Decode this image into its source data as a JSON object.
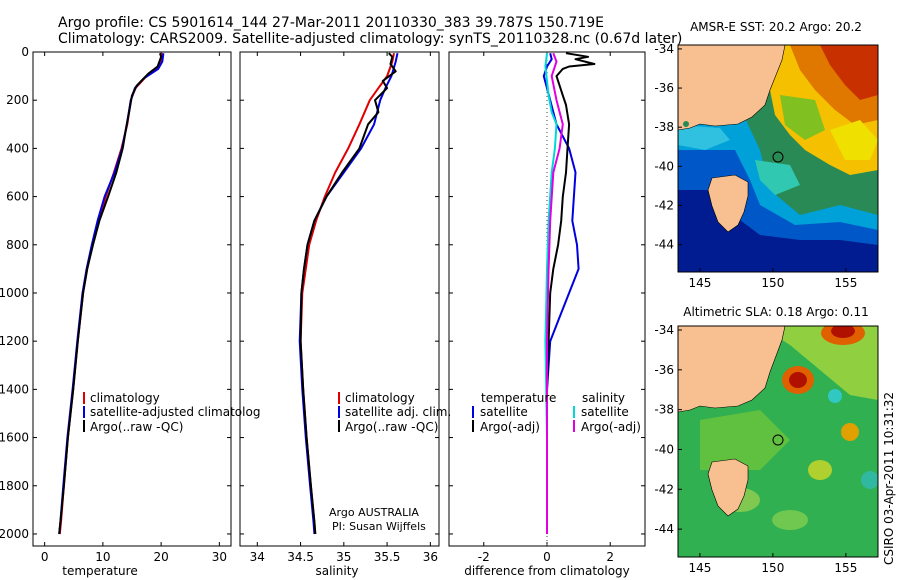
{
  "header": {
    "line1": "Argo profile: CS 5901614_144 27-Mar-2011 20110330_383 39.787S 150.719E",
    "line2": "Climatology: CARS2009. Satellite-adjusted climatology: synTS_20110328.nc (0.67d later)"
  },
  "side_label": "CSIRO 03-Apr-2011 10:31:32",
  "chart_data": [
    {
      "type": "line",
      "id": "temperature",
      "xlabel": "temperature",
      "ylabel": "",
      "xlim": [
        -2,
        32
      ],
      "ylim": [
        0,
        2050
      ],
      "y_reversed": true,
      "xticks": [
        0,
        10,
        20,
        30
      ],
      "yticks": [
        0,
        200,
        400,
        600,
        800,
        1000,
        1200,
        1400,
        1600,
        1800,
        2000
      ],
      "legend": [
        "climatology",
        "satellite-adjusted climatolog",
        "Argo(..raw -QC)"
      ],
      "series": [
        {
          "name": "climatology",
          "color": "#e00000",
          "points": [
            [
              20.2,
              5
            ],
            [
              20.0,
              30
            ],
            [
              19.6,
              60
            ],
            [
              17.5,
              100
            ],
            [
              15.6,
              150
            ],
            [
              14.8,
              200
            ],
            [
              14.2,
              300
            ],
            [
              13.2,
              400
            ],
            [
              11.9,
              500
            ],
            [
              10.5,
              600
            ],
            [
              9.3,
              700
            ],
            [
              8.2,
              800
            ],
            [
              7.3,
              900
            ],
            [
              6.6,
              1000
            ],
            [
              5.7,
              1200
            ],
            [
              4.9,
              1400
            ],
            [
              4.0,
              1600
            ],
            [
              3.3,
              1800
            ],
            [
              2.8,
              1950
            ],
            [
              2.6,
              2000
            ]
          ]
        },
        {
          "name": "satellite-adjusted climatolog",
          "color": "#0000e0",
          "points": [
            [
              20.4,
              5
            ],
            [
              20.2,
              40
            ],
            [
              19.5,
              70
            ],
            [
              17.0,
              110
            ],
            [
              15.5,
              150
            ],
            [
              14.8,
              200
            ],
            [
              14.1,
              300
            ],
            [
              13.3,
              400
            ],
            [
              12.0,
              500
            ],
            [
              10.3,
              600
            ],
            [
              9.1,
              700
            ],
            [
              8.1,
              800
            ],
            [
              7.2,
              900
            ],
            [
              6.5,
              1000
            ],
            [
              5.6,
              1200
            ],
            [
              4.8,
              1400
            ],
            [
              3.9,
              1600
            ],
            [
              3.2,
              1800
            ],
            [
              2.7,
              1950
            ],
            [
              2.5,
              2000
            ]
          ]
        },
        {
          "name": "Argo(..raw -QC)",
          "color": "#000000",
          "points": [
            [
              19.8,
              5
            ],
            [
              20.0,
              20
            ],
            [
              19.7,
              40
            ],
            [
              19.4,
              60
            ],
            [
              17.8,
              90
            ],
            [
              15.8,
              140
            ],
            [
              15.0,
              180
            ],
            [
              14.5,
              250
            ],
            [
              14.1,
              300
            ],
            [
              13.4,
              400
            ],
            [
              12.3,
              500
            ],
            [
              10.9,
              600
            ],
            [
              9.4,
              700
            ],
            [
              8.3,
              800
            ],
            [
              7.3,
              900
            ],
            [
              6.6,
              1000
            ],
            [
              5.7,
              1200
            ],
            [
              4.9,
              1400
            ],
            [
              4.0,
              1600
            ],
            [
              3.3,
              1800
            ],
            [
              2.7,
              1950
            ],
            [
              2.5,
              2000
            ]
          ]
        }
      ]
    },
    {
      "type": "line",
      "id": "salinity",
      "xlabel": "salinity",
      "ylabel": "",
      "xlim": [
        33.8,
        36.1
      ],
      "ylim": [
        0,
        2050
      ],
      "y_reversed": true,
      "xticks": [
        34,
        34.5,
        35,
        35.5,
        36
      ],
      "legend": [
        "climatology",
        "satellite adj. clim.",
        "Argo(..raw -QC)"
      ],
      "annotation_lines": [
        "Argo AUSTRALIA",
        "PI: Susan Wijffels"
      ],
      "series": [
        {
          "name": "climatology",
          "color": "#e00000",
          "points": [
            [
              35.58,
              5
            ],
            [
              35.56,
              40
            ],
            [
              35.5,
              100
            ],
            [
              35.4,
              150
            ],
            [
              35.3,
              200
            ],
            [
              35.18,
              300
            ],
            [
              35.05,
              400
            ],
            [
              34.9,
              500
            ],
            [
              34.78,
              600
            ],
            [
              34.68,
              700
            ],
            [
              34.6,
              800
            ],
            [
              34.56,
              900
            ],
            [
              34.52,
              1000
            ],
            [
              34.5,
              1200
            ],
            [
              34.53,
              1400
            ],
            [
              34.57,
              1600
            ],
            [
              34.62,
              1800
            ],
            [
              34.66,
              1950
            ],
            [
              34.67,
              2000
            ]
          ]
        },
        {
          "name": "satellite adj. clim.",
          "color": "#0000e0",
          "points": [
            [
              35.62,
              5
            ],
            [
              35.6,
              40
            ],
            [
              35.55,
              100
            ],
            [
              35.48,
              150
            ],
            [
              35.42,
              200
            ],
            [
              35.35,
              300
            ],
            [
              35.2,
              400
            ],
            [
              35.0,
              500
            ],
            [
              34.8,
              600
            ],
            [
              34.66,
              700
            ],
            [
              34.58,
              800
            ],
            [
              34.54,
              900
            ],
            [
              34.51,
              1000
            ],
            [
              34.49,
              1200
            ],
            [
              34.52,
              1400
            ],
            [
              34.56,
              1600
            ],
            [
              34.61,
              1800
            ],
            [
              34.65,
              1950
            ],
            [
              34.66,
              2000
            ]
          ]
        },
        {
          "name": "Argo(..raw -QC)",
          "color": "#000000",
          "points": [
            [
              35.52,
              5
            ],
            [
              35.56,
              20
            ],
            [
              35.54,
              50
            ],
            [
              35.6,
              80
            ],
            [
              35.45,
              120
            ],
            [
              35.5,
              150
            ],
            [
              35.36,
              200
            ],
            [
              35.4,
              250
            ],
            [
              35.28,
              300
            ],
            [
              35.18,
              400
            ],
            [
              34.98,
              500
            ],
            [
              34.8,
              600
            ],
            [
              34.66,
              700
            ],
            [
              34.58,
              800
            ],
            [
              34.54,
              900
            ],
            [
              34.51,
              1000
            ],
            [
              34.5,
              1200
            ],
            [
              34.53,
              1400
            ],
            [
              34.57,
              1600
            ],
            [
              34.62,
              1800
            ],
            [
              34.66,
              1950
            ],
            [
              34.67,
              2000
            ]
          ]
        }
      ]
    },
    {
      "type": "line",
      "id": "difference",
      "xlabel": "difference from climatology",
      "ylabel": "",
      "xlim": [
        -3.1,
        3.1
      ],
      "ylim": [
        0,
        2050
      ],
      "y_reversed": true,
      "xticks": [
        -2,
        0,
        2
      ],
      "legend_groups": [
        {
          "title": "temperature",
          "entries": [
            "satellite",
            "Argo(-adj)"
          ]
        },
        {
          "title": "salinity",
          "entries": [
            "satellite",
            "Argo(-adj)"
          ]
        }
      ],
      "series": [
        {
          "name": "temperature satellite",
          "color": "#0000e0",
          "points": [
            [
              0.1,
              5
            ],
            [
              0.15,
              30
            ],
            [
              0.0,
              60
            ],
            [
              -0.1,
              100
            ],
            [
              0.0,
              150
            ],
            [
              0.1,
              200
            ],
            [
              0.3,
              300
            ],
            [
              0.7,
              400
            ],
            [
              0.9,
              500
            ],
            [
              0.85,
              600
            ],
            [
              0.8,
              700
            ],
            [
              0.95,
              800
            ],
            [
              1.0,
              900
            ],
            [
              0.7,
              1000
            ],
            [
              0.4,
              1100
            ],
            [
              0.1,
              1200
            ],
            [
              0.0,
              1400
            ],
            [
              0.0,
              2000
            ]
          ]
        },
        {
          "name": "temperature Argo(-adj)",
          "color": "#000000",
          "points": [
            [
              0.6,
              5
            ],
            [
              1.3,
              20
            ],
            [
              0.9,
              30
            ],
            [
              1.5,
              50
            ],
            [
              0.7,
              60
            ],
            [
              0.5,
              70
            ],
            [
              0.3,
              100
            ],
            [
              0.5,
              180
            ],
            [
              0.6,
              220
            ],
            [
              0.7,
              300
            ],
            [
              0.65,
              400
            ],
            [
              0.6,
              500
            ],
            [
              0.5,
              600
            ],
            [
              0.45,
              700
            ],
            [
              0.35,
              800
            ],
            [
              0.2,
              900
            ],
            [
              0.1,
              1000
            ],
            [
              0.05,
              1200
            ],
            [
              0.0,
              1400
            ],
            [
              0.0,
              2000
            ]
          ]
        },
        {
          "name": "salinity satellite",
          "color": "#00d8d8",
          "points": [
            [
              0.0,
              5
            ],
            [
              -0.05,
              60
            ],
            [
              0.0,
              120
            ],
            [
              0.05,
              180
            ],
            [
              0.15,
              250
            ],
            [
              0.3,
              300
            ],
            [
              0.25,
              400
            ],
            [
              0.15,
              500
            ],
            [
              0.05,
              700
            ],
            [
              0.0,
              900
            ],
            [
              -0.05,
              1200
            ],
            [
              0.0,
              1600
            ],
            [
              0.0,
              2000
            ]
          ]
        },
        {
          "name": "salinity Argo(-adj)",
          "color": "#e000e0",
          "points": [
            [
              0.2,
              5
            ],
            [
              0.3,
              40
            ],
            [
              0.15,
              100
            ],
            [
              0.3,
              200
            ],
            [
              0.5,
              300
            ],
            [
              0.4,
              400
            ],
            [
              0.2,
              500
            ],
            [
              0.1,
              700
            ],
            [
              0.05,
              900
            ],
            [
              0.0,
              1200
            ],
            [
              0.0,
              2000
            ]
          ]
        }
      ]
    }
  ],
  "maps": [
    {
      "id": "sst",
      "title": "AMSR-E SST: 20.2 Argo: 20.2",
      "lon_ticks": [
        145,
        150,
        155
      ],
      "lat_ticks": [
        -34,
        -36,
        -38,
        -40,
        -42,
        -44
      ],
      "float_position": {
        "lon": 150.719,
        "lat": -39.787
      }
    },
    {
      "id": "sla",
      "title": "Altimetric SLA: 0.18 Argo: 0.11",
      "lon_ticks": [
        145,
        150,
        155
      ],
      "lat_ticks": [
        -34,
        -36,
        -38,
        -40,
        -42,
        -44
      ],
      "float_position": {
        "lon": 150.719,
        "lat": -39.787
      }
    }
  ]
}
